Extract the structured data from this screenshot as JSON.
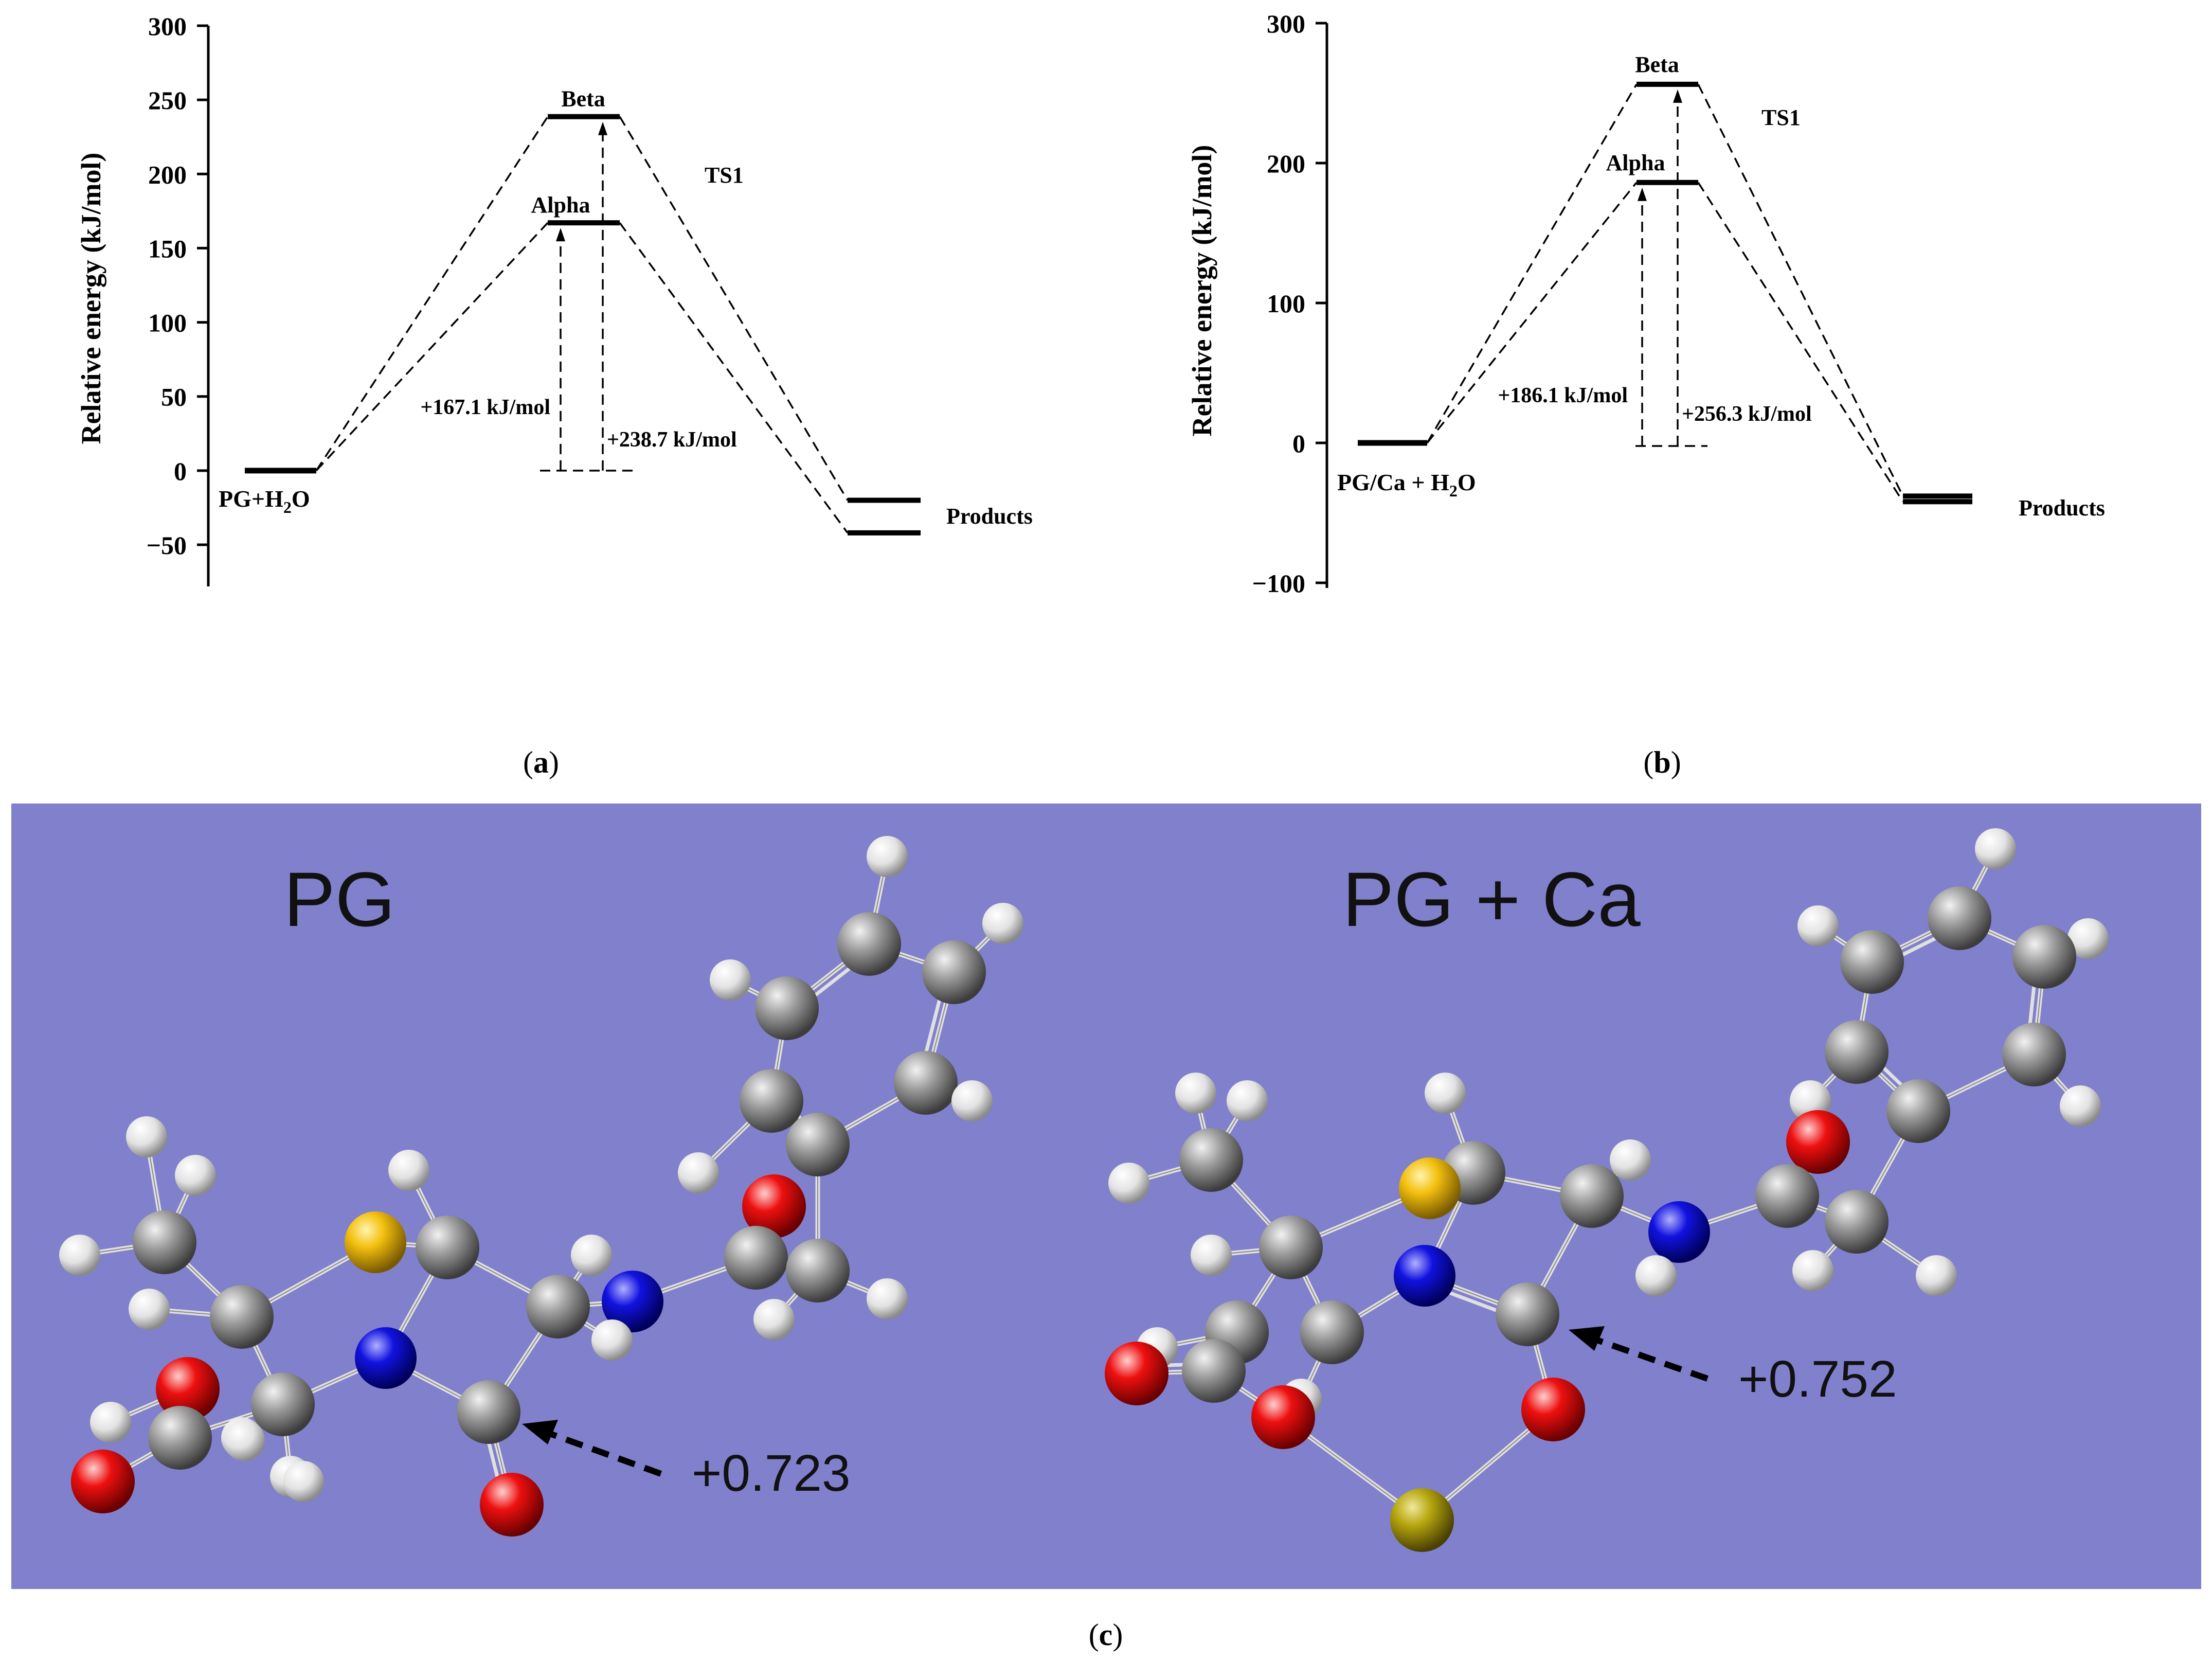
{
  "colors": {
    "panel_bg": "#8080CC",
    "carbon": "#8c8c8c",
    "hydrogen": "#e6e6e6",
    "oxygen": "#e01010",
    "nitrogen": "#1010d8",
    "sulfur": "#f0c010",
    "calcium": "#b0a010",
    "bond": "#d8d8d8"
  },
  "chart_data": [
    {
      "type": "energy-profile",
      "panel_label": "a",
      "ylabel": "Relative energy (kJ/mol)",
      "ylim": [
        -50,
        300
      ],
      "yticks": [
        300,
        250,
        200,
        150,
        100,
        50,
        0,
        -50
      ],
      "reactant": {
        "label_main": "PG+H",
        "label_sub": "2",
        "label_tail": "O",
        "energy": 0
      },
      "ts_label": "TS1",
      "transition_states": [
        {
          "name": "Beta",
          "energy": 238.7,
          "barrier_label": "+238.7 kJ/mol"
        },
        {
          "name": "Alpha",
          "energy": 167.1,
          "barrier_label": "+167.1 kJ/mol"
        }
      ],
      "products_label": "Products",
      "products": [
        {
          "energy": -20
        },
        {
          "energy": -42
        }
      ]
    },
    {
      "type": "energy-profile",
      "panel_label": "b",
      "ylabel": "Relative energy (kJ/mol)",
      "ylim": [
        -100,
        300
      ],
      "yticks": [
        300,
        200,
        100,
        0,
        -100
      ],
      "reactant": {
        "label_main": "PG/Ca + H",
        "label_sub": "2",
        "label_tail": "O",
        "energy": 0
      },
      "ts_label": "TS1",
      "transition_states": [
        {
          "name": "Beta",
          "energy": 256.3,
          "barrier_label": "+256.3 kJ/mol"
        },
        {
          "name": "Alpha",
          "energy": 186.1,
          "barrier_label": "+186.1 kJ/mol"
        }
      ],
      "products_label": "Products",
      "products": [
        {
          "energy": -38
        },
        {
          "energy": -42
        }
      ]
    }
  ],
  "molecules_panel": {
    "panel_label": "c",
    "left_title": "PG",
    "left_charge": "+0.723",
    "right_title": "PG + Ca",
    "right_charge": "+0.752"
  }
}
